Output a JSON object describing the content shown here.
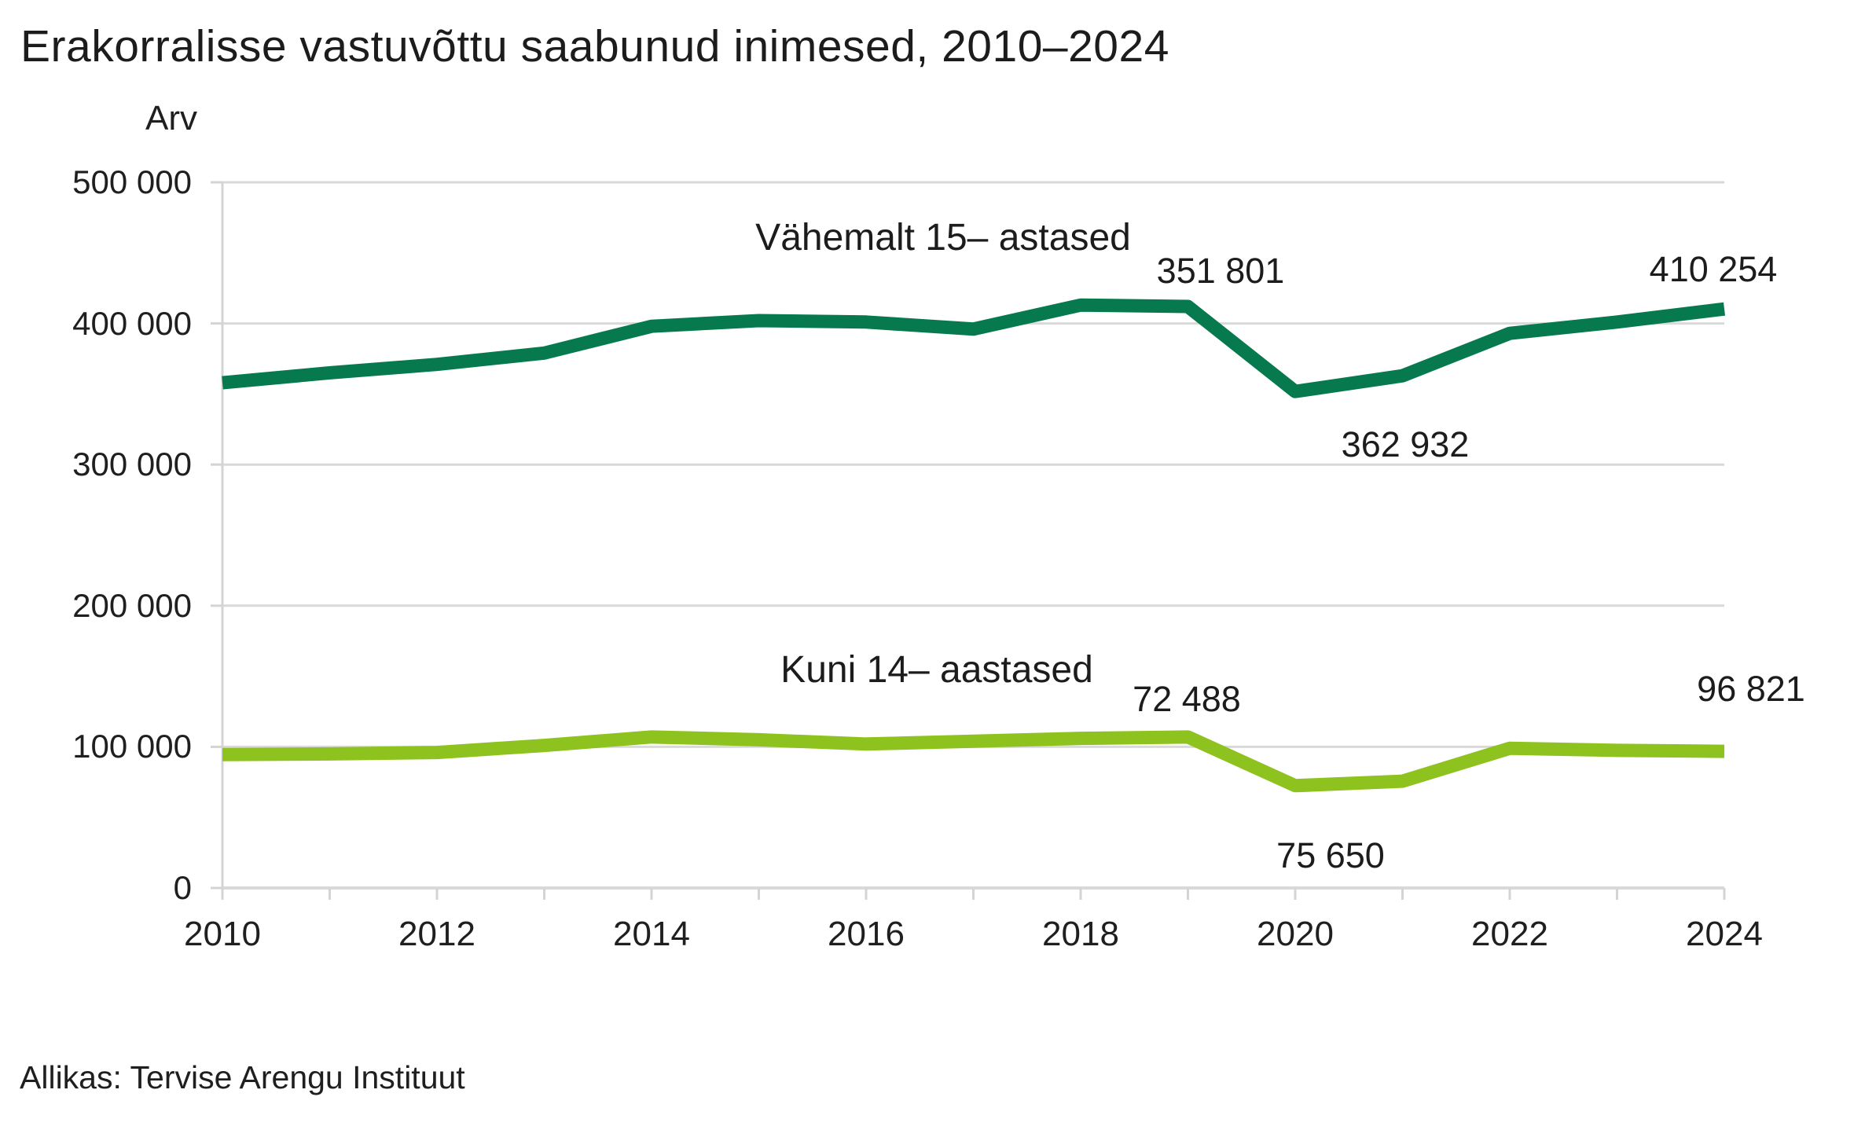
{
  "title": "Erakorralisse vastuvõttu saabunud inimesed, 2010–2024",
  "y_axis_title": "Arv",
  "source": "Allikas: Tervise Arengu Instituut",
  "colors": {
    "series_15plus": "#067a4e",
    "series_under14": "#8dc21f",
    "grid": "#d9d9d9",
    "axis": "#d4d4d4",
    "text": "#1c1c1c"
  },
  "chart_data": {
    "type": "line",
    "x": [
      2010,
      2011,
      2012,
      2013,
      2014,
      2015,
      2016,
      2017,
      2018,
      2019,
      2020,
      2021,
      2022,
      2023,
      2024
    ],
    "series": [
      {
        "name": "Vähemalt 15– astased",
        "color": "#067a4e",
        "values": [
          358000,
          365000,
          371000,
          379000,
          398000,
          402000,
          401000,
          396000,
          413000,
          412000,
          351801,
          362932,
          393000,
          401000,
          410254
        ]
      },
      {
        "name": "Kuni 14– aastased",
        "color": "#8dc21f",
        "values": [
          94500,
          95000,
          96000,
          101000,
          107000,
          105000,
          102000,
          104000,
          106000,
          107000,
          72488,
          75650,
          99000,
          97500,
          96821
        ]
      }
    ],
    "ylim": [
      0,
      500000
    ],
    "y_tick_values": [
      500000,
      400000,
      300000,
      200000,
      100000,
      0
    ],
    "y_tick_labels": [
      "500 000",
      "400 000",
      "300 000",
      "200 000",
      "100 000",
      "0"
    ],
    "x_tick_years": [
      2010,
      2012,
      2014,
      2016,
      2018,
      2020,
      2022,
      2024
    ],
    "x_tick_labels": [
      "2010",
      "2012",
      "2014",
      "2016",
      "2018",
      "2020",
      "2022",
      "2024"
    ],
    "grid": "horizontal",
    "legend_position": "inline-labels",
    "annotations": [
      {
        "series": "Vähemalt 15– astased",
        "year": 2020,
        "text": "351 801"
      },
      {
        "series": "Vähemalt 15– astased",
        "year": 2021,
        "text": "362 932"
      },
      {
        "series": "Vähemalt 15– astased",
        "year": 2024,
        "text": "410 254"
      },
      {
        "series": "Kuni 14– aastased",
        "year": 2020,
        "text": "72 488"
      },
      {
        "series": "Kuni 14– aastased",
        "year": 2021,
        "text": "75 650"
      },
      {
        "series": "Kuni 14– aastased",
        "year": 2024,
        "text": "96 821"
      }
    ]
  }
}
